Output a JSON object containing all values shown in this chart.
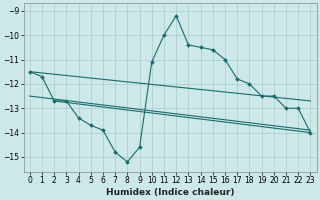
{
  "xlabel": "Humidex (Indice chaleur)",
  "xlim": [
    -0.5,
    23.5
  ],
  "ylim": [
    -15.6,
    -8.7
  ],
  "yticks": [
    -9,
    -10,
    -11,
    -12,
    -13,
    -14,
    -15
  ],
  "xticks": [
    0,
    1,
    2,
    3,
    4,
    5,
    6,
    7,
    8,
    9,
    10,
    11,
    12,
    13,
    14,
    15,
    16,
    17,
    18,
    19,
    20,
    21,
    22,
    23
  ],
  "bg_color": "#cce8e8",
  "grid_color": "#aacccc",
  "line_color": "#1a6b6b",
  "lines": [
    {
      "x": [
        0,
        23
      ],
      "y": [
        -11.5,
        -12.7
      ],
      "has_markers": false
    },
    {
      "x": [
        0,
        23
      ],
      "y": [
        -12.5,
        -13.9
      ],
      "has_markers": false
    },
    {
      "x": [
        2,
        23
      ],
      "y": [
        -12.7,
        -14.0
      ],
      "has_markers": false
    },
    {
      "x": [
        0,
        1,
        2,
        3,
        4,
        5,
        6,
        7,
        8,
        9,
        10,
        11,
        12,
        13,
        14,
        15,
        16,
        17,
        18,
        19,
        20,
        21,
        22,
        23
      ],
      "y": [
        -11.5,
        -11.7,
        -12.7,
        -12.7,
        -13.4,
        -13.7,
        -13.9,
        -14.8,
        -15.2,
        -14.6,
        -11.1,
        -10.0,
        -9.2,
        -10.4,
        -10.5,
        -10.6,
        -11.0,
        -11.8,
        -12.0,
        -12.5,
        -12.5,
        -13.0,
        -13.0,
        -14.0
      ],
      "has_markers": true
    }
  ]
}
